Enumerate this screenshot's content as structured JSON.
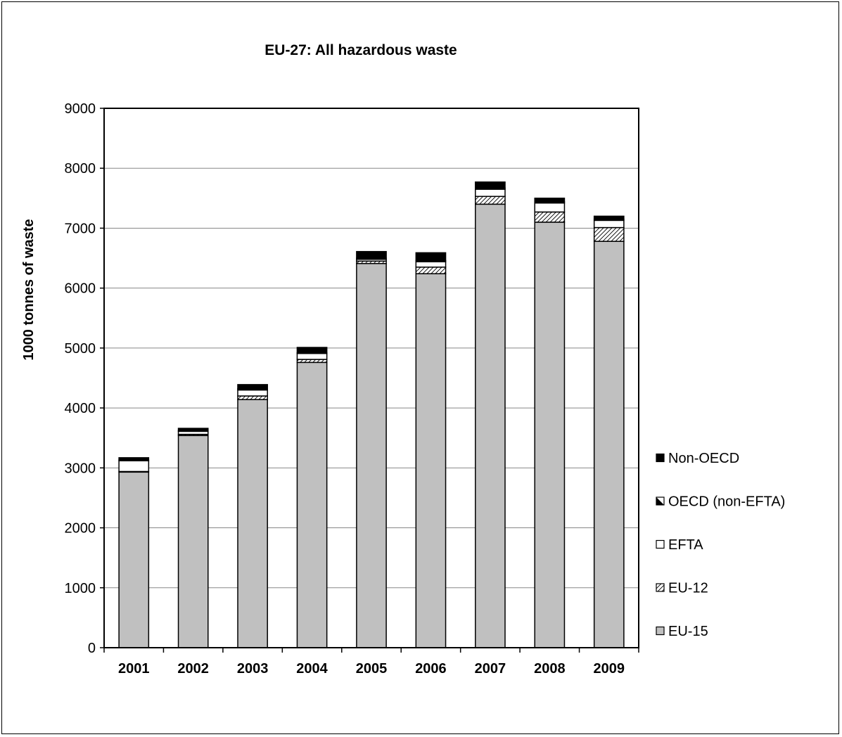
{
  "chart_data": {
    "type": "bar",
    "stacked": true,
    "title": "EU-27: All hazardous waste",
    "ylabel": "1000 tonnes of waste",
    "xlabel": "",
    "ylim": [
      0,
      9000
    ],
    "yticks": [
      0,
      1000,
      2000,
      3000,
      4000,
      5000,
      6000,
      7000,
      8000,
      9000
    ],
    "grid": true,
    "legend_position": "right",
    "categories": [
      "2001",
      "2002",
      "2003",
      "2004",
      "2005",
      "2006",
      "2007",
      "2008",
      "2009"
    ],
    "series": [
      {
        "name": "EU-15",
        "pattern": "solid-grey",
        "color": "#c0c0c0",
        "values": [
          2930,
          3540,
          4140,
          4760,
          6410,
          6240,
          7400,
          7100,
          6780
        ]
      },
      {
        "name": "EU-12",
        "pattern": "diagonal-hatch",
        "color": "#ffffff",
        "values": [
          10,
          20,
          60,
          50,
          40,
          110,
          130,
          170,
          230
        ]
      },
      {
        "name": "EFTA",
        "pattern": "white",
        "color": "#ffffff",
        "values": [
          180,
          50,
          100,
          100,
          30,
          90,
          120,
          150,
          120
        ]
      },
      {
        "name": "OECD (non-EFTA)",
        "pattern": "half-black",
        "color": "#000000",
        "values": [
          10,
          10,
          20,
          10,
          20,
          20,
          20,
          20,
          20
        ]
      },
      {
        "name": "Non-OECD",
        "pattern": "solid-black",
        "color": "#000000",
        "values": [
          40,
          40,
          70,
          90,
          110,
          130,
          100,
          60,
          50
        ]
      }
    ]
  }
}
